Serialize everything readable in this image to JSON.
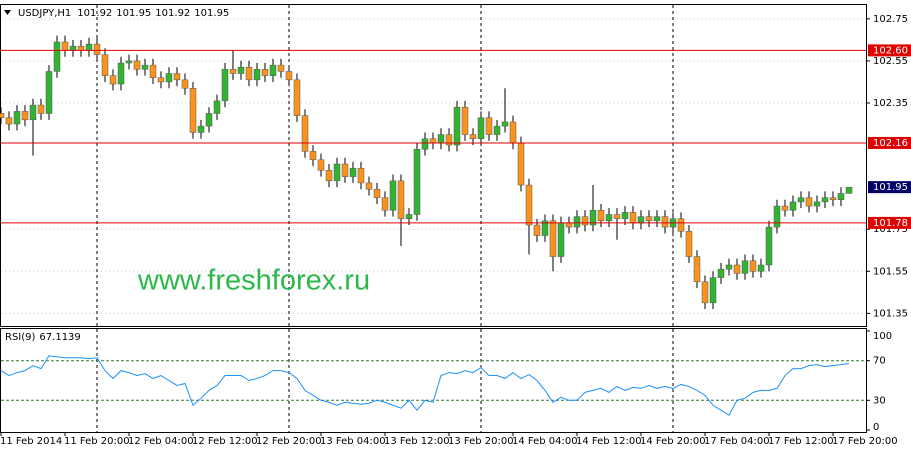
{
  "chart_data": [
    {
      "type": "candlestick",
      "symbol": "USDJPY,H1",
      "watermark": "www.freshforex.ru",
      "up_color": "#32b432",
      "down_color": "#f7931e",
      "ylim": [
        101.29,
        102.83
      ],
      "yticks": [
        102.75,
        102.55,
        102.35,
        101.75,
        101.55,
        101.35
      ],
      "grid": true,
      "price_lines": [
        {
          "value": 102.6,
          "label": "102.60"
        },
        {
          "value": 102.16,
          "label": "102.16"
        },
        {
          "value": 101.78,
          "label": "101.78"
        }
      ],
      "price_line_color": "#e00000",
      "bid": 101.95,
      "bid_color": "#000066",
      "categories": [
        "11 Feb 2014",
        null,
        null,
        null,
        null,
        null,
        null,
        null,
        "11 Feb 20:00",
        null,
        null,
        null,
        null,
        null,
        null,
        null,
        "12 Feb 04:00",
        null,
        null,
        null,
        null,
        null,
        null,
        null,
        "12 Feb 12:00",
        null,
        null,
        null,
        null,
        null,
        null,
        null,
        "12 Feb 20:00",
        null,
        null,
        null,
        null,
        null,
        null,
        null,
        "13 Feb 04:00",
        null,
        null,
        null,
        null,
        null,
        null,
        null,
        "13 Feb 12:00",
        null,
        null,
        null,
        null,
        null,
        null,
        null,
        "13 Feb 20:00",
        null,
        null,
        null,
        null,
        null,
        null,
        null,
        "14 Feb 04:00",
        null,
        null,
        null,
        null,
        null,
        null,
        null,
        "14 Feb 12:00",
        null,
        null,
        null,
        null,
        null,
        null,
        null,
        "14 Feb 20:00",
        null,
        null,
        null,
        null,
        null,
        null,
        null,
        "17 Feb 04:00",
        null,
        null,
        null,
        null,
        null,
        null,
        null,
        "17 Feb 12:00",
        null,
        null,
        null,
        null,
        null,
        null,
        null,
        "17 Feb 20:00",
        null,
        null
      ],
      "candles": [
        [
          102.3,
          102.33,
          102.25,
          102.28
        ],
        [
          102.28,
          102.31,
          102.22,
          102.25
        ],
        [
          102.25,
          102.34,
          102.22,
          102.31
        ],
        [
          102.31,
          102.34,
          102.24,
          102.27
        ],
        [
          102.27,
          102.37,
          102.1,
          102.34
        ],
        [
          102.34,
          102.37,
          102.27,
          102.3
        ],
        [
          102.3,
          102.53,
          102.27,
          102.5
        ],
        [
          102.5,
          102.67,
          102.47,
          102.64
        ],
        [
          102.64,
          102.67,
          102.57,
          102.6
        ],
        [
          102.6,
          102.65,
          102.57,
          102.62
        ],
        [
          102.62,
          102.65,
          102.57,
          102.6
        ],
        [
          102.6,
          102.66,
          102.57,
          102.63
        ],
        [
          102.63,
          102.66,
          102.55,
          102.58
        ],
        [
          102.58,
          102.61,
          102.45,
          102.48
        ],
        [
          102.48,
          102.51,
          102.41,
          102.44
        ],
        [
          102.44,
          102.57,
          102.41,
          102.54
        ],
        [
          102.54,
          102.58,
          102.51,
          102.55
        ],
        [
          102.55,
          102.58,
          102.48,
          102.51
        ],
        [
          102.51,
          102.56,
          102.48,
          102.53
        ],
        [
          102.53,
          102.56,
          102.44,
          102.47
        ],
        [
          102.47,
          102.5,
          102.42,
          102.45
        ],
        [
          102.45,
          102.52,
          102.42,
          102.49
        ],
        [
          102.49,
          102.52,
          102.43,
          102.46
        ],
        [
          102.46,
          102.49,
          102.39,
          102.42
        ],
        [
          102.42,
          102.45,
          102.18,
          102.21
        ],
        [
          102.21,
          102.27,
          102.18,
          102.24
        ],
        [
          102.24,
          102.33,
          102.21,
          102.3
        ],
        [
          102.3,
          102.39,
          102.27,
          102.36
        ],
        [
          102.36,
          102.54,
          102.33,
          102.51
        ],
        [
          102.51,
          102.6,
          102.46,
          102.49
        ],
        [
          102.49,
          102.55,
          102.46,
          102.52
        ],
        [
          102.52,
          102.55,
          102.43,
          102.46
        ],
        [
          102.46,
          102.54,
          102.43,
          102.51
        ],
        [
          102.51,
          102.54,
          102.45,
          102.48
        ],
        [
          102.48,
          102.56,
          102.45,
          102.53
        ],
        [
          102.53,
          102.56,
          102.47,
          102.5
        ],
        [
          102.5,
          102.53,
          102.43,
          102.46
        ],
        [
          102.46,
          102.49,
          102.26,
          102.29
        ],
        [
          102.29,
          102.32,
          102.09,
          102.12
        ],
        [
          102.12,
          102.15,
          102.05,
          102.08
        ],
        [
          102.08,
          102.11,
          102.0,
          102.03
        ],
        [
          102.03,
          102.06,
          101.95,
          101.98
        ],
        [
          101.98,
          102.09,
          101.95,
          102.06
        ],
        [
          102.06,
          102.09,
          101.97,
          102.0
        ],
        [
          102.0,
          102.07,
          101.97,
          102.04
        ],
        [
          102.04,
          102.07,
          101.94,
          101.97
        ],
        [
          101.97,
          102.0,
          101.91,
          101.94
        ],
        [
          101.94,
          101.97,
          101.87,
          101.9
        ],
        [
          101.9,
          101.93,
          101.81,
          101.84
        ],
        [
          101.84,
          102.01,
          101.81,
          101.98
        ],
        [
          101.98,
          102.01,
          101.67,
          101.8
        ],
        [
          101.8,
          101.85,
          101.77,
          101.82
        ],
        [
          101.82,
          102.16,
          101.79,
          102.13
        ],
        [
          102.13,
          102.21,
          102.1,
          102.18
        ],
        [
          102.18,
          102.21,
          102.13,
          102.16
        ],
        [
          102.16,
          102.23,
          102.13,
          102.2
        ],
        [
          102.2,
          102.23,
          102.12,
          102.15
        ],
        [
          102.15,
          102.36,
          102.12,
          102.33
        ],
        [
          102.33,
          102.36,
          102.17,
          102.2
        ],
        [
          102.2,
          102.23,
          102.15,
          102.18
        ],
        [
          102.18,
          102.31,
          102.15,
          102.28
        ],
        [
          102.28,
          102.31,
          102.17,
          102.2
        ],
        [
          102.2,
          102.27,
          102.17,
          102.24
        ],
        [
          102.24,
          102.42,
          102.21,
          102.26
        ],
        [
          102.26,
          102.29,
          102.13,
          102.16
        ],
        [
          102.16,
          102.19,
          101.93,
          101.96
        ],
        [
          101.96,
          101.99,
          101.63,
          101.77
        ],
        [
          101.77,
          101.8,
          101.69,
          101.72
        ],
        [
          101.72,
          101.82,
          101.69,
          101.79
        ],
        [
          101.79,
          101.82,
          101.55,
          101.62
        ],
        [
          101.62,
          101.81,
          101.59,
          101.78
        ],
        [
          101.78,
          101.81,
          101.73,
          101.76
        ],
        [
          101.76,
          101.84,
          101.73,
          101.81
        ],
        [
          101.81,
          101.84,
          101.74,
          101.77
        ],
        [
          101.77,
          101.96,
          101.74,
          101.84
        ],
        [
          101.84,
          101.87,
          101.76,
          101.79
        ],
        [
          101.79,
          101.85,
          101.76,
          101.82
        ],
        [
          101.82,
          101.85,
          101.7,
          101.8
        ],
        [
          101.8,
          101.86,
          101.77,
          101.83
        ],
        [
          101.83,
          101.86,
          101.75,
          101.78
        ],
        [
          101.78,
          101.84,
          101.75,
          101.81
        ],
        [
          101.81,
          101.84,
          101.76,
          101.79
        ],
        [
          101.79,
          101.84,
          101.76,
          101.81
        ],
        [
          101.81,
          101.84,
          101.73,
          101.76
        ],
        [
          101.76,
          101.83,
          101.73,
          101.8
        ],
        [
          101.8,
          101.83,
          101.71,
          101.74
        ],
        [
          101.74,
          101.77,
          101.59,
          101.62
        ],
        [
          101.62,
          101.65,
          101.47,
          101.5
        ],
        [
          101.5,
          101.53,
          101.37,
          101.4
        ],
        [
          101.4,
          101.55,
          101.37,
          101.52
        ],
        [
          101.52,
          101.59,
          101.49,
          101.56
        ],
        [
          101.56,
          101.61,
          101.53,
          101.58
        ],
        [
          101.58,
          101.61,
          101.51,
          101.54
        ],
        [
          101.54,
          101.63,
          101.51,
          101.6
        ],
        [
          101.6,
          101.63,
          101.52,
          101.55
        ],
        [
          101.55,
          101.61,
          101.52,
          101.58
        ],
        [
          101.58,
          101.79,
          101.55,
          101.76
        ],
        [
          101.76,
          101.89,
          101.73,
          101.86
        ],
        [
          101.86,
          101.89,
          101.81,
          101.84
        ],
        [
          101.84,
          101.91,
          101.81,
          101.88
        ],
        [
          101.88,
          101.93,
          101.85,
          101.9
        ],
        [
          101.9,
          101.93,
          101.83,
          101.86
        ],
        [
          101.86,
          101.91,
          101.83,
          101.88
        ],
        [
          101.88,
          101.93,
          101.85,
          101.9
        ],
        [
          101.9,
          101.93,
          101.86,
          101.89
        ],
        [
          101.89,
          101.95,
          101.86,
          101.92
        ],
        [
          101.92,
          101.95,
          101.92,
          101.95
        ]
      ]
    },
    {
      "type": "line",
      "title": "RSI(9)",
      "color": "#1e90ff",
      "ylim": [
        0,
        100
      ],
      "yticks": [
        100,
        70,
        30,
        0
      ],
      "levels": [
        70,
        30
      ],
      "level_color": "#2e7d32",
      "values": [
        60,
        55,
        58,
        60,
        65,
        62,
        75,
        74,
        73,
        73,
        73,
        72,
        73,
        60,
        52,
        60,
        58,
        55,
        57,
        52,
        55,
        50,
        45,
        47,
        25,
        32,
        40,
        45,
        55,
        55,
        55,
        50,
        52,
        55,
        60,
        60,
        58,
        52,
        40,
        35,
        30,
        28,
        25,
        28,
        27,
        26,
        27,
        30,
        28,
        25,
        22,
        30,
        20,
        30,
        28,
        55,
        58,
        57,
        60,
        58,
        63,
        55,
        55,
        52,
        58,
        52,
        56,
        50,
        40,
        28,
        33,
        30,
        30,
        38,
        40,
        42,
        38,
        44,
        40,
        43,
        42,
        45,
        42,
        44,
        42,
        46,
        44,
        40,
        35,
        25,
        20,
        15,
        30,
        32,
        38,
        40,
        40,
        42,
        55,
        62,
        62,
        65,
        66,
        64,
        65,
        66,
        67.1139
      ]
    }
  ]
}
